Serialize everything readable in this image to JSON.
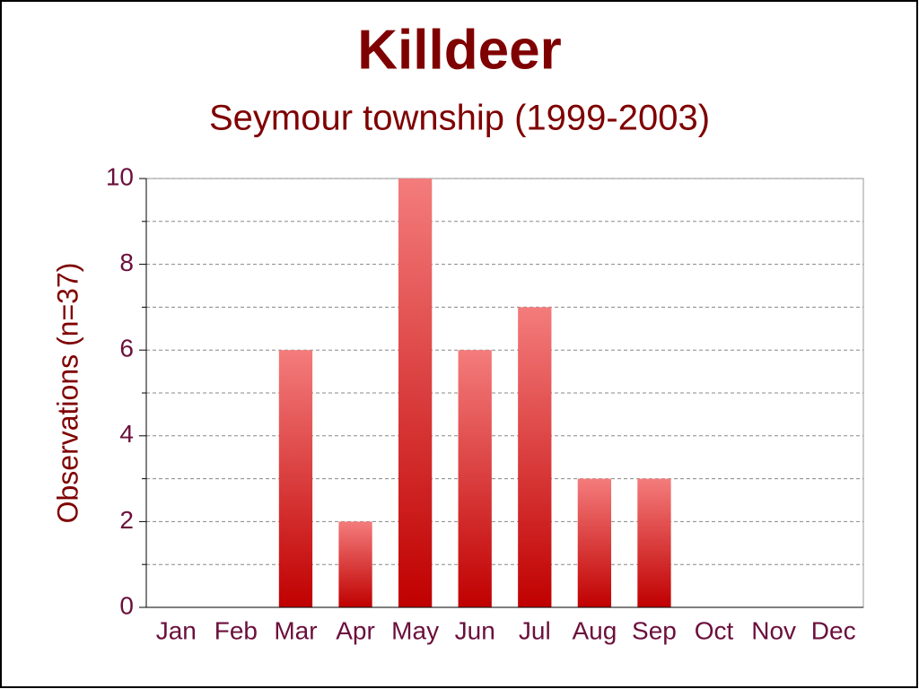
{
  "chart_data": {
    "type": "bar",
    "title": "Killdeer",
    "subtitle": "Seymour township (1999-2003)",
    "y_label": "Observations (n=37)",
    "categories": [
      "Jan",
      "Feb",
      "Mar",
      "Apr",
      "May",
      "Jun",
      "Jul",
      "Aug",
      "Sep",
      "Oct",
      "Nov",
      "Dec"
    ],
    "values": [
      0,
      0,
      6,
      2,
      10,
      6,
      7,
      3,
      3,
      0,
      0,
      0
    ],
    "color": "#c00000",
    "ylim": [
      0,
      10
    ],
    "yticks": [
      0,
      2,
      4,
      6,
      8,
      10
    ],
    "yminorticks": [
      1,
      3,
      5,
      7,
      9
    ],
    "grid": true
  }
}
